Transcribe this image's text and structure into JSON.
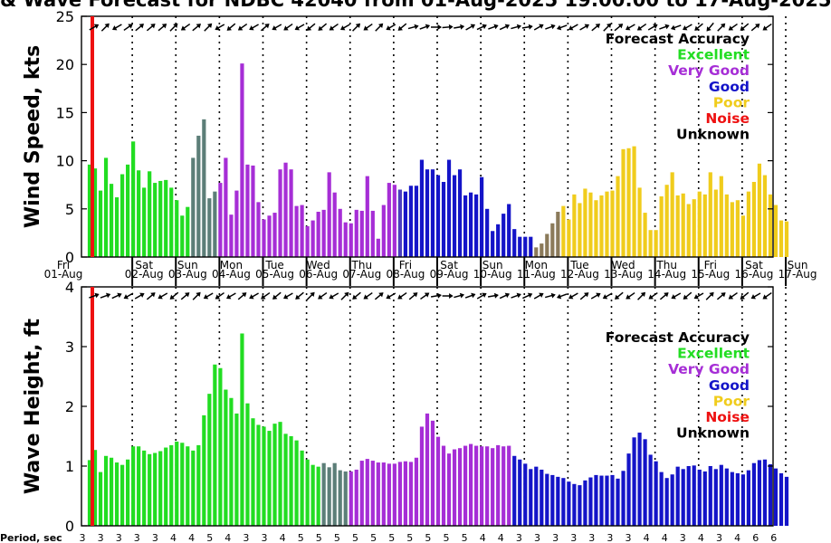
{
  "title": "& Wave Forecast for NDBC 42040 from 01-Aug-2025 19:00:00 to 17-Aug-2025",
  "colors": {
    "Excellent": "#22dd22",
    "Very Good": "#a62ed6",
    "Good": "#1414c8",
    "Poor": "#f0cc1c",
    "Noise": "#ee1111",
    "Unknown": "#000000",
    "transition_green_purple": "#5c7e78",
    "transition_purple_blue": "#4a3dc0",
    "transition_blue_yellow": "#8b7a5a"
  },
  "legend": {
    "title": "Forecast Accuracy",
    "items": [
      {
        "label": "Excellent",
        "color": "#22dd22"
      },
      {
        "label": "Very Good",
        "color": "#a62ed6"
      },
      {
        "label": "Good",
        "color": "#1414c8"
      },
      {
        "label": "Poor",
        "color": "#f0cc1c"
      },
      {
        "label": "Noise",
        "color": "#ee1111"
      },
      {
        "label": "Unknown",
        "color": "#000000"
      }
    ]
  },
  "days": [
    {
      "dow": "Fri",
      "date": "01-Aug"
    },
    {
      "dow": "Sat",
      "date": "02-Aug"
    },
    {
      "dow": "Sun",
      "date": "03-Aug"
    },
    {
      "dow": "Mon",
      "date": "04-Aug"
    },
    {
      "dow": "Tue",
      "date": "05-Aug"
    },
    {
      "dow": "Wed",
      "date": "06-Aug"
    },
    {
      "dow": "Thu",
      "date": "07-Aug"
    },
    {
      "dow": "Fri",
      "date": "08-Aug"
    },
    {
      "dow": "Sat",
      "date": "09-Aug"
    },
    {
      "dow": "Sun",
      "date": "10-Aug"
    },
    {
      "dow": "Mon",
      "date": "11-Aug"
    },
    {
      "dow": "Tue",
      "date": "12-Aug"
    },
    {
      "dow": "Wed",
      "date": "13-Aug"
    },
    {
      "dow": "Thu",
      "date": "14-Aug"
    },
    {
      "dow": "Fri",
      "date": "15-Aug"
    },
    {
      "dow": "Sat",
      "date": "16-Aug"
    },
    {
      "dow": "Sun",
      "date": "17-Aug"
    }
  ],
  "period_label": "Period, sec",
  "periods": [
    "3",
    "3",
    "3",
    "3",
    "3",
    "4",
    "4",
    "5",
    "4",
    "3",
    "3",
    "4",
    "5",
    "5",
    "5",
    "5",
    "5",
    "5",
    "5",
    "5",
    "5",
    "5",
    "4",
    "4",
    "3",
    "3",
    "3",
    "3",
    "3",
    "3",
    "3",
    "4",
    "4",
    "3",
    "4",
    "3",
    "4",
    "6",
    "6"
  ],
  "chart_data": [
    {
      "type": "bar",
      "ylabel": "Wind Speed, kts",
      "ylim": [
        0,
        25
      ],
      "yticks": [
        0,
        5,
        10,
        15,
        20,
        25
      ],
      "grid": "dotted vertical at day boundaries",
      "legend_placement": "top-right",
      "x_start_hours_offset": 1,
      "bar_interval_hours": 3,
      "color_bands": [
        {
          "count": 19,
          "color": "#22dd22"
        },
        {
          "count": 5,
          "color": "#5c7e78"
        },
        {
          "count": 33,
          "color": "#a62ed6"
        },
        {
          "count": 1,
          "color": "#4a3dc0"
        },
        {
          "count": 24,
          "color": "#1414c8"
        },
        {
          "count": 5,
          "color": "#8b7a5a"
        },
        {
          "count": 42,
          "color": "#f0cc1c"
        }
      ],
      "values": [
        9.6,
        9.2,
        6.9,
        10.3,
        7.6,
        6.2,
        8.6,
        9.6,
        12.0,
        9.0,
        7.2,
        8.9,
        7.7,
        7.9,
        8.0,
        7.2,
        5.9,
        4.3,
        5.2,
        10.3,
        12.6,
        14.3,
        6.1,
        6.8,
        7.7,
        10.3,
        4.4,
        6.9,
        20.1,
        9.6,
        9.5,
        5.7,
        3.9,
        4.3,
        4.6,
        9.1,
        9.8,
        9.1,
        5.3,
        5.4,
        3.2,
        3.8,
        4.7,
        4.9,
        8.8,
        6.7,
        5.0,
        3.6,
        3.5,
        4.9,
        4.8,
        8.4,
        4.8,
        1.9,
        5.4,
        7.7,
        7.5,
        7.0,
        6.8,
        7.4,
        7.4,
        10.1,
        9.1,
        9.1,
        8.5,
        7.8,
        10.1,
        8.5,
        9.1,
        6.4,
        6.7,
        6.5,
        8.3,
        5.0,
        2.7,
        3.4,
        4.5,
        5.5,
        2.9,
        2.1,
        2.1,
        2.1,
        1.0,
        1.4,
        2.4,
        3.5,
        4.7,
        5.3,
        3.9,
        6.5,
        5.6,
        7.1,
        6.7,
        5.9,
        6.4,
        6.8,
        6.9,
        8.4,
        11.2,
        11.3,
        11.5,
        7.2,
        4.6,
        2.8,
        2.8,
        6.3,
        7.5,
        8.8,
        6.4,
        6.6,
        5.5,
        6.0,
        6.8,
        6.5,
        8.8,
        7.0,
        8.4,
        6.5,
        5.7,
        5.9,
        4.3,
        6.8,
        7.8,
        9.7,
        8.5,
        6.5,
        5.4,
        3.8,
        3.7
      ]
    },
    {
      "type": "bar",
      "ylabel": "Wave Height, ft",
      "ylim": [
        0,
        4
      ],
      "yticks": [
        0,
        1,
        2,
        3,
        4
      ],
      "grid": "dotted vertical at day boundaries",
      "legend_placement": "top-right",
      "x_start_hours_offset": 1,
      "bar_interval_hours": 3,
      "color_bands": [
        {
          "count": 43,
          "color": "#22dd22"
        },
        {
          "count": 5,
          "color": "#5c7e78"
        },
        {
          "count": 30,
          "color": "#a62ed6"
        },
        {
          "count": 51,
          "color": "#1414c8"
        }
      ],
      "values": [
        1.1,
        1.27,
        0.9,
        1.17,
        1.14,
        1.06,
        1.02,
        1.11,
        1.33,
        1.33,
        1.26,
        1.2,
        1.22,
        1.25,
        1.31,
        1.35,
        1.41,
        1.39,
        1.33,
        1.26,
        1.35,
        1.85,
        2.21,
        2.7,
        2.64,
        2.28,
        2.14,
        1.88,
        3.22,
        2.05,
        1.8,
        1.69,
        1.66,
        1.59,
        1.71,
        1.74,
        1.54,
        1.5,
        1.43,
        1.26,
        1.11,
        1.02,
        0.99,
        1.05,
        0.98,
        1.05,
        0.93,
        0.91,
        0.91,
        0.94,
        1.09,
        1.12,
        1.09,
        1.06,
        1.06,
        1.04,
        1.04,
        1.07,
        1.08,
        1.07,
        1.14,
        1.66,
        1.88,
        1.76,
        1.49,
        1.34,
        1.21,
        1.28,
        1.3,
        1.34,
        1.37,
        1.34,
        1.33,
        1.33,
        1.3,
        1.35,
        1.33,
        1.34,
        1.17,
        1.11,
        1.04,
        0.95,
        0.99,
        0.94,
        0.87,
        0.85,
        0.82,
        0.8,
        0.74,
        0.7,
        0.68,
        0.76,
        0.81,
        0.85,
        0.84,
        0.84,
        0.85,
        0.79,
        0.92,
        1.21,
        1.48,
        1.56,
        1.45,
        1.19,
        1.08,
        0.9,
        0.8,
        0.86,
        0.99,
        0.95,
        1.0,
        1.01,
        0.94,
        0.91,
        1.0,
        0.95,
        1.02,
        0.96,
        0.9,
        0.88,
        0.86,
        0.93,
        1.05,
        1.1,
        1.11,
        1.03,
        0.96,
        0.88,
        0.82
      ]
    }
  ]
}
